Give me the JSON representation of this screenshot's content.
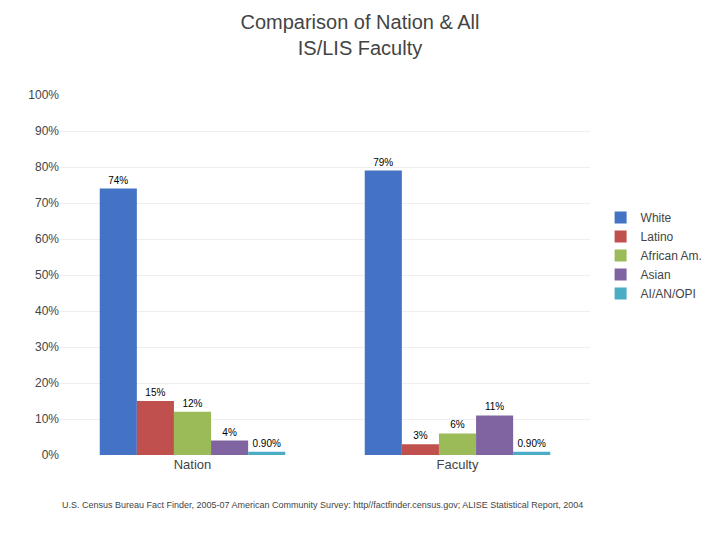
{
  "chart_data": {
    "type": "bar",
    "title": "Comparison of Nation & All\nIS/LIS Faculty",
    "categories": [
      "Nation",
      "Faculty"
    ],
    "series": [
      {
        "name": "White",
        "color": "#4472C4",
        "values": [
          74,
          79
        ],
        "value_labels": [
          "74%",
          "79%"
        ]
      },
      {
        "name": "Latino",
        "color": "#C0504D",
        "values": [
          15,
          3
        ],
        "value_labels": [
          "15%",
          "3%"
        ]
      },
      {
        "name": "African Am.",
        "color": "#9BBB59",
        "values": [
          12,
          6
        ],
        "value_labels": [
          "12%",
          "6%"
        ]
      },
      {
        "name": "Asian",
        "color": "#8064A2",
        "values": [
          4,
          11
        ],
        "value_labels": [
          "4%",
          "11%"
        ]
      },
      {
        "name": "AI/AN/OPI",
        "color": "#4BACC6",
        "values": [
          0.9,
          0.9
        ],
        "value_labels": [
          "0.90%",
          "0.90%"
        ]
      }
    ],
    "ylim": [
      0,
      100
    ],
    "yticks": [
      {
        "value": 0,
        "label": "0%"
      },
      {
        "value": 10,
        "label": "10%"
      },
      {
        "value": 20,
        "label": "20%"
      },
      {
        "value": 30,
        "label": "30%"
      },
      {
        "value": 40,
        "label": "40%"
      },
      {
        "value": 50,
        "label": "50%"
      },
      {
        "value": 60,
        "label": "60%"
      },
      {
        "value": 70,
        "label": "70%"
      },
      {
        "value": 80,
        "label": "80%"
      },
      {
        "value": 90,
        "label": "90%"
      },
      {
        "value": 100,
        "label": "100%"
      }
    ],
    "grid": true,
    "legend": "right",
    "data_labels": true,
    "annotations": [
      "U.S. Census Bureau Fact Finder, 2005-07 American Community Survey: http//factfinder.census.gov; ALISE Statistical Report, 2004"
    ]
  }
}
